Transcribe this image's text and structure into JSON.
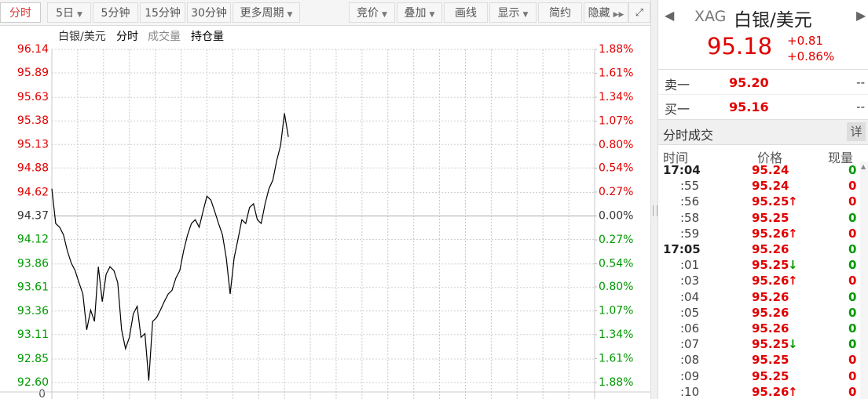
{
  "toolbar": {
    "left": [
      "分时",
      "5日",
      "5分钟",
      "15分钟",
      "30分钟",
      "更多周期"
    ],
    "right": [
      "竞价",
      "叠加",
      "画线",
      "显示",
      "简约",
      "隐藏"
    ]
  },
  "chart": {
    "type": "line",
    "legend": [
      "白银/美元",
      "分时",
      "成交量",
      "持仓量"
    ],
    "color": "#000000",
    "ylim": [
      92.6,
      96.14
    ],
    "yticks": [
      {
        "value": 96.14,
        "label": "96.14"
      },
      {
        "value": 95.89,
        "label": "95.89"
      },
      {
        "value": 95.63,
        "label": "95.63"
      },
      {
        "value": 95.38,
        "label": "95.38"
      },
      {
        "value": 95.13,
        "label": "95.13"
      },
      {
        "value": 94.88,
        "label": "94.88"
      },
      {
        "value": 94.62,
        "label": "94.62"
      },
      {
        "value": 94.37,
        "label": "94.37"
      },
      {
        "value": 94.12,
        "label": "94.12"
      },
      {
        "value": 93.86,
        "label": "93.86"
      },
      {
        "value": 93.61,
        "label": "93.61"
      },
      {
        "value": 93.36,
        "label": "93.36"
      },
      {
        "value": 93.11,
        "label": "93.11"
      },
      {
        "value": 92.85,
        "label": "92.85"
      },
      {
        "value": 92.6,
        "label": "92.60"
      }
    ],
    "y2lim": [
      -1.88,
      1.88
    ],
    "y2ticks": [
      {
        "value": 1.88,
        "label": "1.88%"
      },
      {
        "value": 1.61,
        "label": "1.61%"
      },
      {
        "value": 1.34,
        "label": "1.34%"
      },
      {
        "value": 1.07,
        "label": "1.07%"
      },
      {
        "value": 0.8,
        "label": "0.80%"
      },
      {
        "value": 0.54,
        "label": "0.54%"
      },
      {
        "value": 0.27,
        "label": "0.27%"
      },
      {
        "value": 0,
        "label": "0.00%"
      },
      {
        "value": -0.27,
        "label": "0.27%"
      },
      {
        "value": -0.54,
        "label": "0.54%"
      },
      {
        "value": -0.8,
        "label": "0.80%"
      },
      {
        "value": -1.07,
        "label": "1.07%"
      },
      {
        "value": -1.34,
        "label": "1.34%"
      },
      {
        "value": -1.61,
        "label": "1.61%"
      },
      {
        "value": -1.88,
        "label": "1.88%"
      }
    ],
    "bottom_label": "0",
    "values": [
      94.66,
      94.29,
      94.25,
      94.17,
      94.0,
      93.87,
      93.79,
      93.66,
      93.54,
      93.16,
      93.37,
      93.25,
      93.83,
      93.46,
      93.75,
      93.83,
      93.79,
      93.66,
      93.16,
      92.96,
      93.08,
      93.33,
      93.41,
      93.08,
      93.12,
      92.62,
      93.25,
      93.29,
      93.37,
      93.46,
      93.54,
      93.58,
      93.71,
      93.79,
      94.0,
      94.17,
      94.29,
      94.33,
      94.25,
      94.42,
      94.58,
      94.54,
      94.42,
      94.29,
      94.17,
      93.92,
      93.54,
      93.92,
      94.12,
      94.33,
      94.29,
      94.46,
      94.5,
      94.33,
      94.29,
      94.5,
      94.66,
      94.75,
      94.96,
      95.12,
      95.46,
      95.21
    ]
  },
  "quote": {
    "code": "XAG",
    "name": "白银/美元",
    "price": "95.18",
    "change": "+0.81",
    "change_pct": "+0.86%",
    "sell": {
      "label": "卖一",
      "price": "95.20",
      "volume": "--"
    },
    "buy": {
      "label": "买一",
      "price": "95.16",
      "volume": "--"
    }
  },
  "ticks": {
    "title": "分时成交",
    "detail": "详",
    "headers": [
      "时间",
      "价格",
      "现量"
    ],
    "rows": [
      {
        "time": "17:04",
        "price": "95.24",
        "volume": "0",
        "volume_color": "#009900"
      },
      {
        "time": ":55",
        "price": "95.24",
        "volume": "0",
        "volume_color": "#e00000"
      },
      {
        "time": ":56",
        "price": "95.25",
        "arrow": "up",
        "volume": "0",
        "volume_color": "#e00000"
      },
      {
        "time": ":58",
        "price": "95.25",
        "volume": "0",
        "volume_color": "#009900"
      },
      {
        "time": ":59",
        "price": "95.26",
        "arrow": "up",
        "volume": "0",
        "volume_color": "#e00000"
      },
      {
        "time": "17:05",
        "price": "95.26",
        "volume": "0",
        "volume_color": "#009900"
      },
      {
        "time": ":01",
        "price": "95.25",
        "arrow": "down",
        "volume": "0",
        "volume_color": "#009900"
      },
      {
        "time": ":03",
        "price": "95.26",
        "arrow": "up",
        "volume": "0",
        "volume_color": "#e00000"
      },
      {
        "time": ":04",
        "price": "95.26",
        "volume": "0",
        "volume_color": "#009900"
      },
      {
        "time": ":05",
        "price": "95.26",
        "volume": "0",
        "volume_color": "#009900"
      },
      {
        "time": ":06",
        "price": "95.26",
        "volume": "0",
        "volume_color": "#009900"
      },
      {
        "time": ":07",
        "price": "95.25",
        "arrow": "down",
        "volume": "0",
        "volume_color": "#009900"
      },
      {
        "time": ":08",
        "price": "95.25",
        "volume": "0",
        "volume_color": "#e00000"
      },
      {
        "time": ":09",
        "price": "95.25",
        "volume": "0",
        "volume_color": "#e00000"
      },
      {
        "time": ":10",
        "price": "95.26",
        "arrow": "up",
        "volume": "0",
        "volume_color": "#e00000"
      }
    ]
  }
}
